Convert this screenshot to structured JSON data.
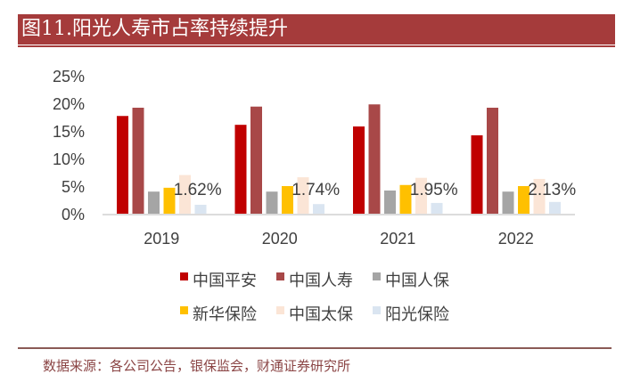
{
  "title": "图11.阳光人寿市占率持续提升",
  "source": "数据来源：各公司公告，银保监会，财通证券研究所",
  "chart_data": {
    "type": "bar",
    "title": "图11.阳光人寿市占率持续提升",
    "xlabel": "",
    "ylabel": "",
    "ylim": [
      0,
      25
    ],
    "yticks": [
      "0%",
      "5%",
      "10%",
      "15%",
      "20%",
      "25%"
    ],
    "categories": [
      "2019",
      "2020",
      "2021",
      "2022"
    ],
    "series": [
      {
        "name": "中国平安",
        "color": "#c00000",
        "values": [
          17.7,
          16.1,
          15.8,
          14.2
        ]
      },
      {
        "name": "中国人寿",
        "color": "#a84848",
        "values": [
          19.2,
          19.4,
          19.8,
          19.2
        ]
      },
      {
        "name": "中国人保",
        "color": "#a5a5a5",
        "values": [
          4.0,
          4.0,
          4.2,
          4.0
        ]
      },
      {
        "name": "新华保险",
        "color": "#ffc000",
        "values": [
          4.7,
          5.0,
          5.2,
          5.0
        ]
      },
      {
        "name": "中国太保",
        "color": "#fbe5d6",
        "values": [
          7.0,
          6.6,
          6.5,
          6.3
        ]
      },
      {
        "name": "阳光保险",
        "color": "#dae5f1",
        "values": [
          1.62,
          1.74,
          1.95,
          2.13
        ]
      }
    ],
    "data_labels": [
      "1.62%",
      "1.74%",
      "1.95%",
      "2.13%"
    ],
    "legend_position": "bottom",
    "grid": false
  }
}
